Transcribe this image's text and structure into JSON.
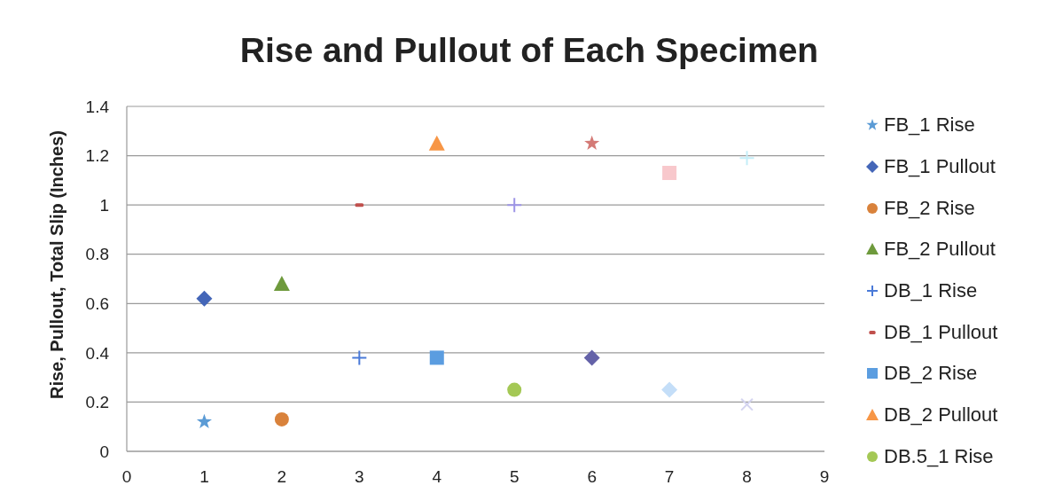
{
  "chart_data": {
    "type": "scatter",
    "title": "Rise and Pullout of Each Specimen",
    "ylabel": "Rise, Pullout, Total Slip (Inches)",
    "xlim": [
      0,
      9
    ],
    "xticks": [
      0,
      1,
      2,
      3,
      4,
      5,
      6,
      7,
      8,
      9
    ],
    "ylim": [
      0,
      1.4
    ],
    "yticks": [
      0,
      0.2,
      0.4,
      0.6,
      0.8,
      1,
      1.2,
      1.4
    ],
    "grid": "y",
    "legend": "right",
    "series": [
      {
        "name": "FB_1 Rise",
        "color": "#5b9bd5",
        "marker": "star",
        "x": [
          1
        ],
        "values": [
          0.12
        ]
      },
      {
        "name": "FB_1 Pullout",
        "color": "#4466b8",
        "marker": "diamond",
        "x": [
          1
        ],
        "values": [
          0.62
        ]
      },
      {
        "name": "FB_2 Rise",
        "color": "#d9823b",
        "marker": "circle",
        "x": [
          2
        ],
        "values": [
          0.13
        ]
      },
      {
        "name": "FB_2 Pullout",
        "color": "#6e9a3c",
        "marker": "triangle",
        "x": [
          2
        ],
        "values": [
          0.68
        ]
      },
      {
        "name": "DB_1 Rise",
        "color": "#4a7ad8",
        "marker": "cross",
        "x": [
          3
        ],
        "values": [
          0.38
        ]
      },
      {
        "name": "DB_1 Pullout",
        "color": "#c0504d",
        "x": [
          3
        ],
        "values": [
          1.0
        ]
      },
      {
        "name": "DB_2 Rise",
        "color": "#5b9de0",
        "marker": "square",
        "x": [
          4
        ],
        "values": [
          0.38
        ]
      },
      {
        "name": "DB_2 Pullout",
        "color": "#f79646",
        "marker": "triangle",
        "x": [
          4
        ],
        "values": [
          1.25
        ]
      },
      {
        "name": "DB.5_1 Rise",
        "color": "#a4c855",
        "marker": "circle",
        "x": [
          5
        ],
        "values": [
          0.25
        ]
      },
      {
        "color": "#9d94e6",
        "marker": "cross",
        "x": [
          5
        ],
        "values": [
          1.0
        ]
      },
      {
        "color": "#6462a8",
        "marker": "diamond",
        "x": [
          6
        ],
        "values": [
          0.38
        ]
      },
      {
        "color": "#d47a76",
        "marker": "star",
        "x": [
          6
        ],
        "values": [
          1.25
        ]
      },
      {
        "color": "#c4def8",
        "marker": "diamond",
        "x": [
          7
        ],
        "values": [
          0.25
        ]
      },
      {
        "color": "#f8c8cc",
        "marker": "square",
        "x": [
          7
        ],
        "values": [
          1.13
        ]
      },
      {
        "color": "#d4d4f0",
        "marker": "x",
        "x": [
          8
        ],
        "values": [
          0.19
        ]
      },
      {
        "color": "#c4eef8",
        "marker": "cross",
        "x": [
          8
        ],
        "values": [
          1.19
        ]
      }
    ]
  }
}
